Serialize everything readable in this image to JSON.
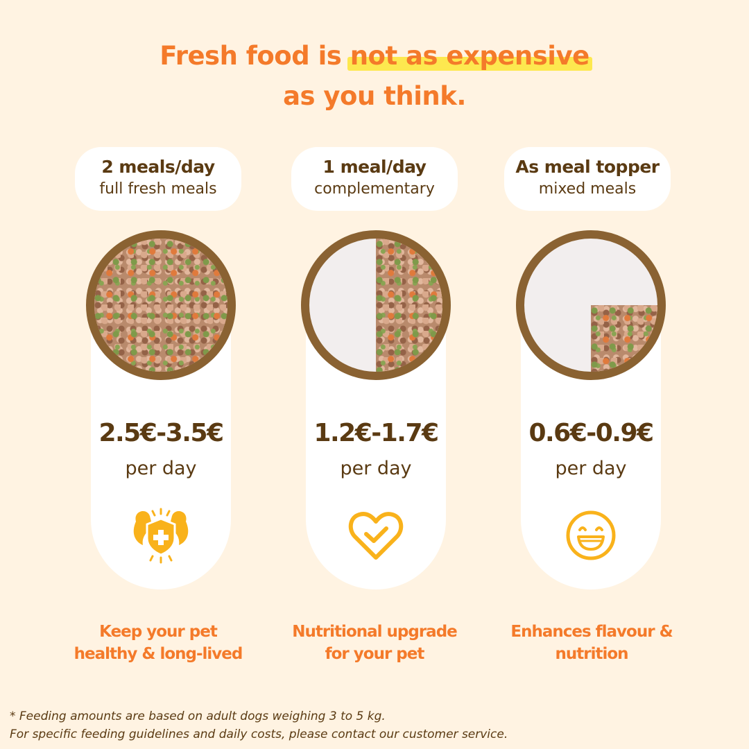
{
  "headline": {
    "part1": "Fresh food is ",
    "highlight": "not as expensive",
    "part2": "as you think."
  },
  "columns": [
    {
      "title": "2 meals/day",
      "subtitle": "full fresh meals",
      "price": "2.5€-3.5€",
      "unit": "per day",
      "icon": "strong-shield-icon",
      "benefit_line1": "Keep your pet",
      "benefit_line2": "healthy & long-lived",
      "bowl_fill_fraction": 1.0
    },
    {
      "title": "1 meal/day",
      "subtitle": "complementary",
      "price": "1.2€-1.7€",
      "unit": "per day",
      "icon": "heart-check-icon",
      "benefit_line1": "Nutritional upgrade",
      "benefit_line2": "for your pet",
      "bowl_fill_fraction": 0.5
    },
    {
      "title": "As meal topper",
      "subtitle": "mixed meals",
      "price": "0.6€-0.9€",
      "unit": "per day",
      "icon": "smiley-face-icon",
      "benefit_line1": "Enhances flavour &",
      "benefit_line2": "nutrition",
      "bowl_fill_fraction": 0.25
    }
  ],
  "footnote": {
    "line1": "* Feeding amounts are based on adult dogs weighing 3 to 5 kg.",
    "line2": "For specific feeding guidelines and daily costs, please contact our customer service."
  },
  "colors": {
    "background": "#fff3e2",
    "accent_orange": "#f47a2a",
    "highlight_yellow": "#fde84f",
    "brown": "#5a3a12",
    "bowl_rim": "#8a6232",
    "icon_yellow": "#f9b21b"
  }
}
